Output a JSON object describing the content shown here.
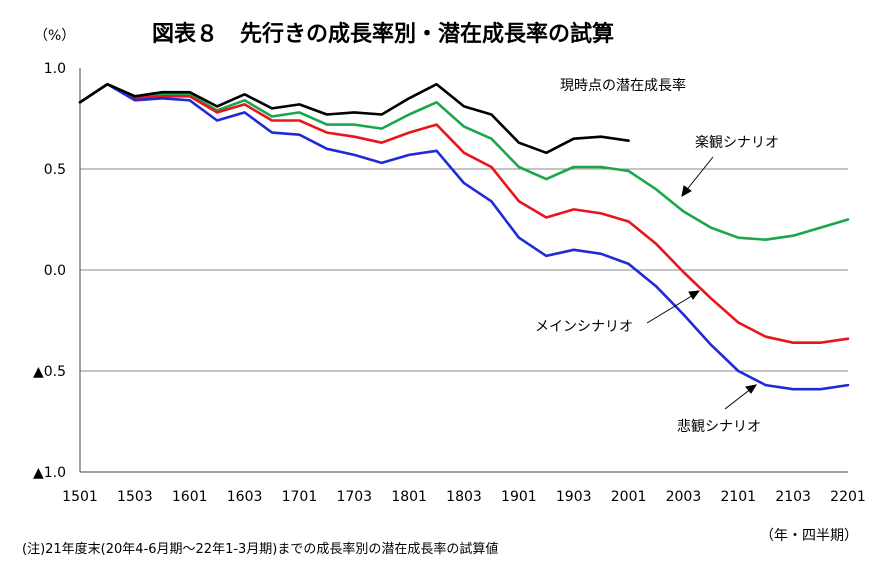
{
  "chart_data": {
    "type": "line",
    "title": "図表８　先行きの成長率別・潜在成長率の試算",
    "y_unit_label": "（%）",
    "x_unit_label": "（年・四半期）",
    "note": "(注)21年度末(20年4-6月期～22年1-3月期)までの成長率別の潜在成長率の試算値",
    "ylim": [
      -1.0,
      1.0
    ],
    "y_ticks": [
      {
        "value": 1.0,
        "label": "1.0"
      },
      {
        "value": 0.5,
        "label": "0.5"
      },
      {
        "value": 0.0,
        "label": "0.0"
      },
      {
        "value": -0.5,
        "label": "▲0.5"
      },
      {
        "value": -1.0,
        "label": "▲1.0"
      }
    ],
    "gridlines": [
      0.5,
      0.0,
      -0.5
    ],
    "x": [
      "1501",
      "1502",
      "1503",
      "1504",
      "1601",
      "1602",
      "1603",
      "1604",
      "1701",
      "1702",
      "1703",
      "1704",
      "1801",
      "1802",
      "1803",
      "1804",
      "1901",
      "1902",
      "1903",
      "1904",
      "2001",
      "2002",
      "2003",
      "2004",
      "2101",
      "2102",
      "2103",
      "2104",
      "2201"
    ],
    "x_tick_labels": [
      "1501",
      "1503",
      "1601",
      "1603",
      "1701",
      "1703",
      "1801",
      "1803",
      "1901",
      "1903",
      "2001",
      "2003",
      "2101",
      "2103",
      "2201"
    ],
    "series": [
      {
        "name": "現時点の潜在成長率",
        "color": "#000000",
        "values": [
          0.83,
          0.92,
          0.86,
          0.88,
          0.88,
          0.81,
          0.87,
          0.8,
          0.82,
          0.77,
          0.78,
          0.77,
          0.85,
          0.92,
          0.81,
          0.77,
          0.63,
          0.58,
          0.65,
          0.66,
          0.64,
          null,
          null,
          null,
          null,
          null,
          null,
          null,
          null
        ]
      },
      {
        "name": "楽観シナリオ",
        "color": "#1aa64b",
        "values": [
          0.83,
          0.92,
          0.86,
          0.87,
          0.87,
          0.79,
          0.84,
          0.76,
          0.78,
          0.72,
          0.72,
          0.7,
          0.77,
          0.83,
          0.71,
          0.65,
          0.51,
          0.45,
          0.51,
          0.51,
          0.49,
          0.4,
          0.29,
          0.21,
          0.16,
          0.15,
          0.17,
          0.21,
          0.25
        ]
      },
      {
        "name": "メインシナリオ",
        "color": "#e8151b",
        "values": [
          0.83,
          0.92,
          0.85,
          0.86,
          0.86,
          0.78,
          0.82,
          0.74,
          0.74,
          0.68,
          0.66,
          0.63,
          0.68,
          0.72,
          0.58,
          0.51,
          0.34,
          0.26,
          0.3,
          0.28,
          0.24,
          0.13,
          -0.01,
          -0.14,
          -0.26,
          -0.33,
          -0.36,
          -0.36,
          -0.34
        ]
      },
      {
        "name": "悲観シナリオ",
        "color": "#1f2bd6",
        "values": [
          0.83,
          0.92,
          0.84,
          0.85,
          0.84,
          0.74,
          0.78,
          0.68,
          0.67,
          0.6,
          0.57,
          0.53,
          0.57,
          0.59,
          0.43,
          0.34,
          0.16,
          0.07,
          0.1,
          0.08,
          0.03,
          -0.08,
          -0.22,
          -0.37,
          -0.5,
          -0.57,
          -0.59,
          -0.59,
          -0.57
        ]
      }
    ]
  }
}
